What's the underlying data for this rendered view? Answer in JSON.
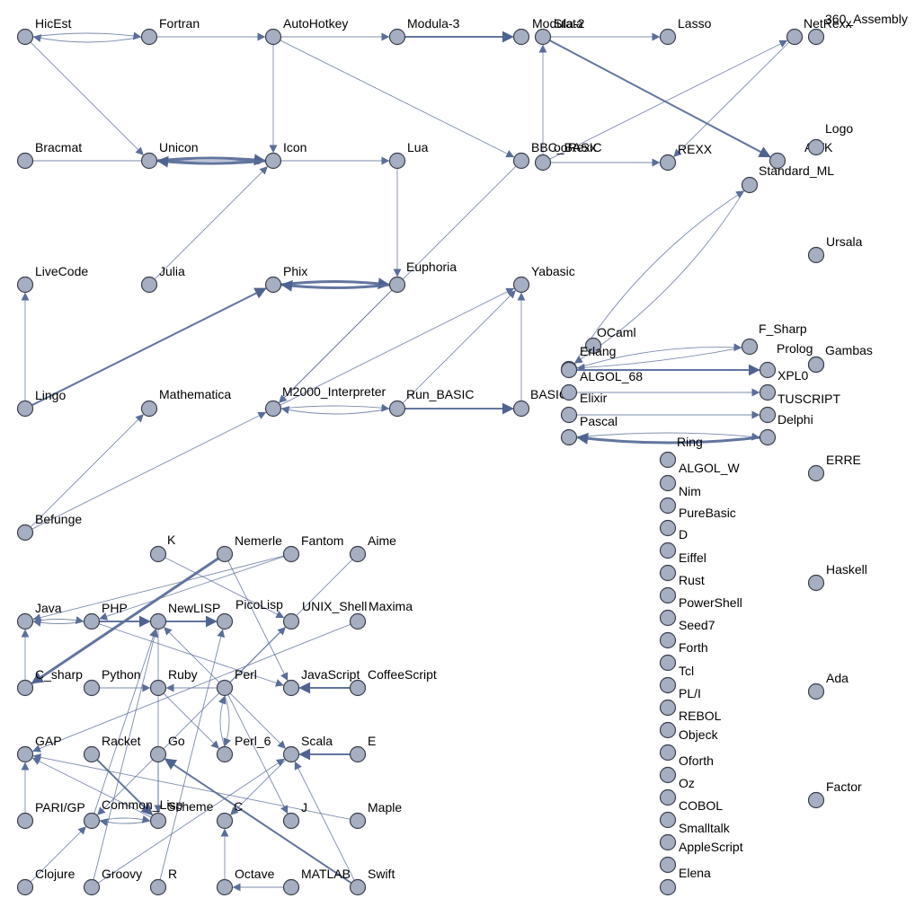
{
  "colors": {
    "edge": "#5a6e9a",
    "node_fill": "#a6aec2",
    "node_stroke": "#3a3f4c",
    "label": "#000000"
  },
  "nodes": [
    {
      "id": "HicEst",
      "label": "HicEst"
    },
    {
      "id": "Fortran",
      "label": "Fortran"
    },
    {
      "id": "AutoHotkey",
      "label": "AutoHotkey"
    },
    {
      "id": "Modula-3",
      "label": "Modula-3"
    },
    {
      "id": "Modula-2",
      "label": "Modula-2"
    },
    {
      "id": "Stata",
      "label": "Stata"
    },
    {
      "id": "Lasso",
      "label": "Lasso"
    },
    {
      "id": "NetRexx",
      "label": "NetRexx"
    },
    {
      "id": "360_Assembly",
      "label": "360_Assembly"
    },
    {
      "id": "Bracmat",
      "label": "Bracmat"
    },
    {
      "id": "Unicon",
      "label": "Unicon"
    },
    {
      "id": "Icon",
      "label": "Icon"
    },
    {
      "id": "Lua",
      "label": "Lua"
    },
    {
      "id": "BBC_BASIC",
      "label": "BBC_BASIC"
    },
    {
      "id": "ooRexx",
      "label": "ooRexx"
    },
    {
      "id": "REXX",
      "label": "REXX"
    },
    {
      "id": "AWK",
      "label": "AWK"
    },
    {
      "id": "Logo",
      "label": "Logo"
    },
    {
      "id": "Standard_ML",
      "label": "Standard_ML"
    },
    {
      "id": "LiveCode",
      "label": "LiveCode"
    },
    {
      "id": "Julia",
      "label": "Julia"
    },
    {
      "id": "Phix",
      "label": "Phix"
    },
    {
      "id": "Euphoria",
      "label": "Euphoria"
    },
    {
      "id": "Yabasic",
      "label": "Yabasic"
    },
    {
      "id": "Ursala",
      "label": "Ursala"
    },
    {
      "id": "OCaml",
      "label": "OCaml"
    },
    {
      "id": "F_Sharp",
      "label": "F_Sharp"
    },
    {
      "id": "Erlang",
      "label": "Erlang"
    },
    {
      "id": "Prolog",
      "label": "Prolog"
    },
    {
      "id": "Gambas",
      "label": "Gambas"
    },
    {
      "id": "ALGOL_68",
      "label": "ALGOL_68"
    },
    {
      "id": "XPL0",
      "label": "XPL0"
    },
    {
      "id": "Lingo",
      "label": "Lingo"
    },
    {
      "id": "Mathematica",
      "label": "Mathematica"
    },
    {
      "id": "M2000_Interpreter",
      "label": "M2000_Interpreter"
    },
    {
      "id": "Run_BASIC",
      "label": "Run_BASIC"
    },
    {
      "id": "BASIC",
      "label": "BASIC"
    },
    {
      "id": "Elixir",
      "label": "Elixir"
    },
    {
      "id": "TUSCRIPT",
      "label": "TUSCRIPT"
    },
    {
      "id": "Pascal",
      "label": "Pascal"
    },
    {
      "id": "Delphi",
      "label": "Delphi"
    },
    {
      "id": "Ring",
      "label": "Ring"
    },
    {
      "id": "Ring2",
      "label": ""
    },
    {
      "id": "ALGOL_W",
      "label": "ALGOL_W"
    },
    {
      "id": "ERRE",
      "label": "ERRE"
    },
    {
      "id": "Nim",
      "label": "Nim"
    },
    {
      "id": "PureBasic",
      "label": "PureBasic"
    },
    {
      "id": "Befunge",
      "label": "Befunge"
    },
    {
      "id": "D",
      "label": "D"
    },
    {
      "id": "K",
      "label": "K"
    },
    {
      "id": "Nemerle",
      "label": "Nemerle"
    },
    {
      "id": "Fantom",
      "label": "Fantom"
    },
    {
      "id": "Aime",
      "label": "Aime"
    },
    {
      "id": "Eiffel",
      "label": "Eiffel"
    },
    {
      "id": "Haskell",
      "label": "Haskell"
    },
    {
      "id": "Rust",
      "label": "Rust"
    },
    {
      "id": "Java",
      "label": "Java"
    },
    {
      "id": "PHP",
      "label": "PHP"
    },
    {
      "id": "NewLISP",
      "label": "NewLISP"
    },
    {
      "id": "PicoLisp",
      "label": "PicoLisp"
    },
    {
      "id": "UNIX_Shell",
      "label": "UNIX_Shell"
    },
    {
      "id": "Maxima",
      "label": "Maxima"
    },
    {
      "id": "PowerShell",
      "label": "PowerShell"
    },
    {
      "id": "Seed7",
      "label": "Seed7"
    },
    {
      "id": "Forth",
      "label": "Forth"
    },
    {
      "id": "C_sharp",
      "label": "C_sharp"
    },
    {
      "id": "Python",
      "label": "Python"
    },
    {
      "id": "Ruby",
      "label": "Ruby"
    },
    {
      "id": "Perl",
      "label": "Perl"
    },
    {
      "id": "JavaScript",
      "label": "JavaScript"
    },
    {
      "id": "CoffeeScript",
      "label": "CoffeeScript"
    },
    {
      "id": "Tcl",
      "label": "Tcl"
    },
    {
      "id": "Ada",
      "label": "Ada"
    },
    {
      "id": "PL/I",
      "label": "PL/I"
    },
    {
      "id": "REBOL",
      "label": "REBOL"
    },
    {
      "id": "GAP",
      "label": "GAP"
    },
    {
      "id": "Racket",
      "label": "Racket"
    },
    {
      "id": "Go",
      "label": "Go"
    },
    {
      "id": "Perl_6",
      "label": "Perl_6"
    },
    {
      "id": "Scala",
      "label": "Scala"
    },
    {
      "id": "E",
      "label": "E"
    },
    {
      "id": "Objeck",
      "label": "Objeck"
    },
    {
      "id": "Oforth",
      "label": "Oforth"
    },
    {
      "id": "Oz",
      "label": "Oz"
    },
    {
      "id": "Factor",
      "label": "Factor"
    },
    {
      "id": "PARI/GP",
      "label": "PARI/GP"
    },
    {
      "id": "Common_Lisp",
      "label": "Common_Lisp"
    },
    {
      "id": "Scheme",
      "label": "Scheme"
    },
    {
      "id": "C",
      "label": "C"
    },
    {
      "id": "J",
      "label": "J"
    },
    {
      "id": "Maple",
      "label": "Maple"
    },
    {
      "id": "COBOL",
      "label": "COBOL"
    },
    {
      "id": "Smalltalk",
      "label": "Smalltalk"
    },
    {
      "id": "AppleScript",
      "label": "AppleScript"
    },
    {
      "id": "Clojure",
      "label": "Clojure"
    },
    {
      "id": "Groovy",
      "label": "Groovy"
    },
    {
      "id": "R",
      "label": "R"
    },
    {
      "id": "Octave",
      "label": "Octave"
    },
    {
      "id": "MATLAB",
      "label": "MATLAB"
    },
    {
      "id": "Swift",
      "label": "Swift"
    },
    {
      "id": "Elena",
      "label": "Elena"
    },
    {
      "id": "Elena2",
      "label": ""
    }
  ],
  "edges": [
    {
      "from": "HicEst",
      "to": "Fortran",
      "w": 1
    },
    {
      "from": "Fortran",
      "to": "HicEst",
      "w": 1
    },
    {
      "from": "HicEst",
      "to": "Unicon",
      "w": 1
    },
    {
      "from": "Fortran",
      "to": "AutoHotkey",
      "w": 1
    },
    {
      "from": "AutoHotkey",
      "to": "Modula-3",
      "w": 1
    },
    {
      "from": "AutoHotkey",
      "to": "Icon",
      "w": 1
    },
    {
      "from": "AutoHotkey",
      "to": "BBC_BASIC",
      "w": 1
    },
    {
      "from": "Modula-3",
      "to": "Modula-2",
      "w": 2
    },
    {
      "from": "Stata",
      "to": "Lasso",
      "w": 1
    },
    {
      "from": "Stata",
      "to": "AWK",
      "w": 2
    },
    {
      "from": "ooRexx",
      "to": "Stata",
      "w": 1
    },
    {
      "from": "ooRexx",
      "to": "REXX",
      "w": 1
    },
    {
      "from": "ooRexx",
      "to": "NetRexx",
      "w": 1
    },
    {
      "from": "NetRexx",
      "to": "REXX",
      "w": 1
    },
    {
      "from": "Bracmat",
      "to": "Icon",
      "w": 1
    },
    {
      "from": "Unicon",
      "to": "Icon",
      "w": 3
    },
    {
      "from": "Icon",
      "to": "Unicon",
      "w": 3
    },
    {
      "from": "Icon",
      "to": "Lua",
      "w": 1
    },
    {
      "from": "Julia",
      "to": "Icon",
      "w": 1
    },
    {
      "from": "Lua",
      "to": "Euphoria",
      "w": 1
    },
    {
      "from": "Phix",
      "to": "Euphoria",
      "w": 3
    },
    {
      "from": "Euphoria",
      "to": "Phix",
      "w": 3
    },
    {
      "from": "Euphoria",
      "to": "M2000_Interpreter",
      "w": 1
    },
    {
      "from": "BBC_BASIC",
      "to": "M2000_Interpreter",
      "w": 1
    },
    {
      "from": "Lingo",
      "to": "LiveCode",
      "w": 1
    },
    {
      "from": "Lingo",
      "to": "Phix",
      "w": 2
    },
    {
      "from": "Befunge",
      "to": "Mathematica",
      "w": 1
    },
    {
      "from": "Befunge",
      "to": "M2000_Interpreter",
      "w": 1
    },
    {
      "from": "M2000_Interpreter",
      "to": "Run_BASIC",
      "w": 1
    },
    {
      "from": "Run_BASIC",
      "to": "M2000_Interpreter",
      "w": 1
    },
    {
      "from": "M2000_Interpreter",
      "to": "Yabasic",
      "w": 1
    },
    {
      "from": "Run_BASIC",
      "to": "Yabasic",
      "w": 1
    },
    {
      "from": "Run_BASIC",
      "to": "BASIC",
      "w": 2
    },
    {
      "from": "BASIC",
      "to": "Yabasic",
      "w": 1
    },
    {
      "from": "Standard_ML",
      "to": "Erlang",
      "w": 1
    },
    {
      "from": "Erlang",
      "to": "Standard_ML",
      "w": 1
    },
    {
      "from": "Erlang",
      "to": "F_Sharp",
      "w": 1
    },
    {
      "from": "F_Sharp",
      "to": "Erlang",
      "w": 1
    },
    {
      "from": "ALGOL_68",
      "to": "XPL0",
      "w": 2
    },
    {
      "from": "Elixir",
      "to": "TUSCRIPT",
      "w": 1
    },
    {
      "from": "Pascal",
      "to": "Delphi",
      "w": 1
    },
    {
      "from": "Ring",
      "to": "Ring2",
      "w": 1
    },
    {
      "from": "Ring2",
      "to": "Ring",
      "w": 3
    },
    {
      "from": "Java",
      "to": "PHP",
      "w": 1
    },
    {
      "from": "PHP",
      "to": "Java",
      "w": 1
    },
    {
      "from": "PHP",
      "to": "NewLISP",
      "w": 2
    },
    {
      "from": "NewLISP",
      "to": "PicoLisp",
      "w": 2
    },
    {
      "from": "C_sharp",
      "to": "Java",
      "w": 1
    },
    {
      "from": "Nemerle",
      "to": "C_sharp",
      "w": 3
    },
    {
      "from": "Fantom",
      "to": "Java",
      "w": 1
    },
    {
      "from": "Fantom",
      "to": "PHP",
      "w": 1
    },
    {
      "from": "K",
      "to": "UNIX_Shell",
      "w": 1
    },
    {
      "from": "Nemerle",
      "to": "JavaScript",
      "w": 1
    },
    {
      "from": "Aime",
      "to": "Common_Lisp",
      "w": 1
    },
    {
      "from": "PHP",
      "to": "JavaScript",
      "w": 1
    },
    {
      "from": "Python",
      "to": "Ruby",
      "w": 1
    },
    {
      "from": "Perl",
      "to": "Ruby",
      "w": 1
    },
    {
      "from": "Perl",
      "to": "NewLISP",
      "w": 1
    },
    {
      "from": "CoffeeScript",
      "to": "JavaScript",
      "w": 2
    },
    {
      "from": "Perl_6",
      "to": "Perl",
      "w": 1
    },
    {
      "from": "Perl",
      "to": "Perl_6",
      "w": 1
    },
    {
      "from": "Perl",
      "to": "UNIX_Shell",
      "w": 1
    },
    {
      "from": "Perl",
      "to": "J",
      "w": 1
    },
    {
      "from": "Ruby",
      "to": "Perl_6",
      "w": 1
    },
    {
      "from": "NewLISP",
      "to": "Scheme",
      "w": 1
    },
    {
      "from": "Go",
      "to": "Scheme",
      "w": 1
    },
    {
      "from": "Racket",
      "to": "Scheme",
      "w": 2
    },
    {
      "from": "Scheme",
      "to": "Common_Lisp",
      "w": 1
    },
    {
      "from": "Common_Lisp",
      "to": "Scheme",
      "w": 1
    },
    {
      "from": "Common_Lisp",
      "to": "NewLISP",
      "w": 1
    },
    {
      "from": "Scheme",
      "to": "GAP",
      "w": 1
    },
    {
      "from": "Maxima",
      "to": "GAP",
      "w": 1
    },
    {
      "from": "PARI/GP",
      "to": "GAP",
      "w": 1
    },
    {
      "from": "Maple",
      "to": "GAP",
      "w": 1
    },
    {
      "from": "E",
      "to": "Scala",
      "w": 2
    },
    {
      "from": "Groovy",
      "to": "Scala",
      "w": 1
    },
    {
      "from": "Swift",
      "to": "Go",
      "w": 2
    },
    {
      "from": "MATLAB",
      "to": "Octave",
      "w": 1
    },
    {
      "from": "Octave",
      "to": "C",
      "w": 1
    },
    {
      "from": "Swift",
      "to": "Scala",
      "w": 1
    },
    {
      "from": "Clojure",
      "to": "Common_Lisp",
      "w": 1
    },
    {
      "from": "R",
      "to": "PicoLisp",
      "w": 1
    },
    {
      "from": "Groovy",
      "to": "NewLISP",
      "w": 1
    },
    {
      "from": "Scala",
      "to": "C",
      "w": 1
    },
    {
      "from": "Perl",
      "to": "Scala",
      "w": 1
    }
  ]
}
